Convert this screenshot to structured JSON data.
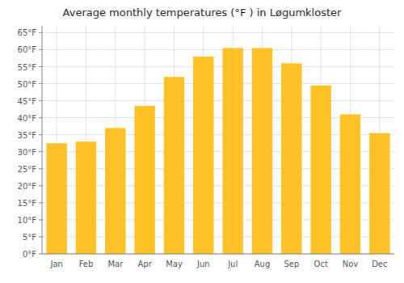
{
  "chart_data": {
    "type": "bar",
    "title": "Average monthly temperatures (°F ) in Løgumkloster",
    "categories": [
      "Jan",
      "Feb",
      "Mar",
      "Apr",
      "May",
      "Jun",
      "Jul",
      "Aug",
      "Sep",
      "Oct",
      "Nov",
      "Dec"
    ],
    "values": [
      32.5,
      33.0,
      37.0,
      43.5,
      52.0,
      58.0,
      60.5,
      60.5,
      56.0,
      49.5,
      41.0,
      35.5
    ],
    "color": "#FFC125",
    "ylim": [
      0,
      67
    ],
    "yticks": [
      {
        "value": 0,
        "label": "0°F"
      },
      {
        "value": 5,
        "label": "5°F"
      },
      {
        "value": 10,
        "label": "10°F"
      },
      {
        "value": 15,
        "label": "15°F"
      },
      {
        "value": 20,
        "label": "20°F"
      },
      {
        "value": 25,
        "label": "25°F"
      },
      {
        "value": 30,
        "label": "30°F"
      },
      {
        "value": 35,
        "label": "35°F"
      },
      {
        "value": 40,
        "label": "40°F"
      },
      {
        "value": 45,
        "label": "45°F"
      },
      {
        "value": 50,
        "label": "50°F"
      },
      {
        "value": 55,
        "label": "55°F"
      },
      {
        "value": 60,
        "label": "60°F"
      },
      {
        "value": 65,
        "label": "65°F"
      }
    ],
    "grid": true
  }
}
